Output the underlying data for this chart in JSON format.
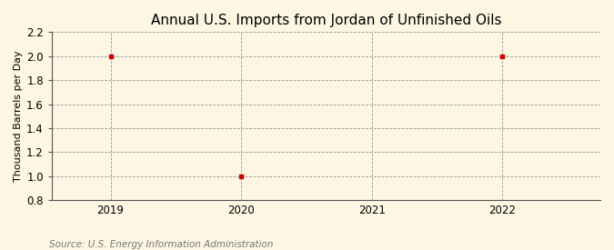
{
  "title": "Annual U.S. Imports from Jordan of Unfinished Oils",
  "ylabel": "Thousand Barrels per Day",
  "source": "Source: U.S. Energy Information Administration",
  "x_data": [
    2019,
    2020,
    2022
  ],
  "y_data": [
    2.0,
    1.0,
    2.0
  ],
  "xlim": [
    2018.55,
    2022.75
  ],
  "ylim": [
    0.8,
    2.2
  ],
  "yticks": [
    0.8,
    1.0,
    1.2,
    1.4,
    1.6,
    1.8,
    2.0,
    2.2
  ],
  "xticks": [
    2019,
    2020,
    2021,
    2022
  ],
  "point_color": "#cc0000",
  "point_marker": "s",
  "point_size": 3.5,
  "grid_color": "#999999",
  "grid_style": "--",
  "grid_linewidth": 0.6,
  "vgrid_color": "#999999",
  "vgrid_style": "--",
  "background_color": "#fdf6e3",
  "title_fontsize": 11,
  "ylabel_fontsize": 8,
  "tick_fontsize": 8.5,
  "source_fontsize": 7.5
}
